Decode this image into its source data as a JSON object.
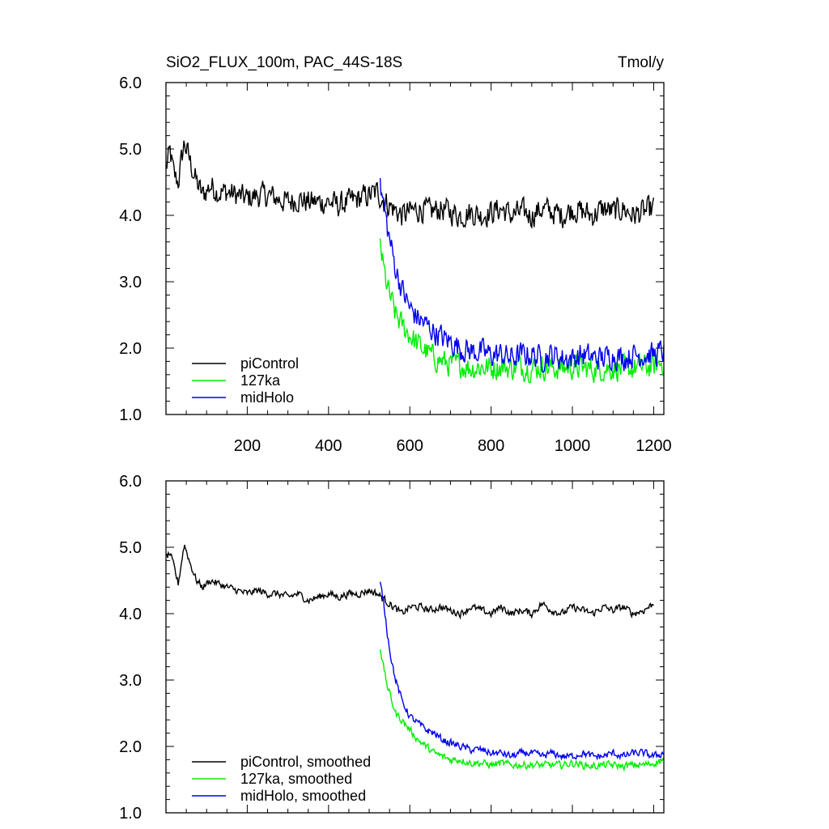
{
  "chart_data": [
    {
      "type": "line",
      "title": "SiO2_FLUX_100m, PAC_44S-18S",
      "units": "Tmol/y",
      "xlim": [
        0,
        1225
      ],
      "ylim": [
        1.0,
        6.0
      ],
      "x_ticks": [
        200,
        400,
        600,
        800,
        1000,
        1200
      ],
      "x_tick_labels": [
        "200",
        "400",
        "600",
        "800",
        "1000",
        "1200"
      ],
      "y_ticks": [
        1.0,
        2.0,
        3.0,
        4.0,
        5.0,
        6.0
      ],
      "y_tick_labels": [
        "1.0",
        "2.0",
        "3.0",
        "4.0",
        "5.0",
        "6.0"
      ],
      "legend_position": "bottom-left",
      "series": [
        {
          "name": "piControl",
          "color": "#000000",
          "points": [
            [
              0,
              4.7
            ],
            [
              10,
              4.95
            ],
            [
              20,
              4.6
            ],
            [
              30,
              4.5
            ],
            [
              45,
              5.1
            ],
            [
              60,
              4.8
            ],
            [
              75,
              4.5
            ],
            [
              90,
              4.3
            ],
            [
              110,
              4.45
            ],
            [
              130,
              4.35
            ],
            [
              150,
              4.35
            ],
            [
              175,
              4.3
            ],
            [
              200,
              4.25
            ],
            [
              225,
              4.3
            ],
            [
              250,
              4.3
            ],
            [
              275,
              4.25
            ],
            [
              300,
              4.2
            ],
            [
              325,
              4.25
            ],
            [
              350,
              4.2
            ],
            [
              375,
              4.2
            ],
            [
              400,
              4.2
            ],
            [
              425,
              4.15
            ],
            [
              450,
              4.2
            ],
            [
              475,
              4.25
            ],
            [
              500,
              4.3
            ],
            [
              520,
              4.35
            ],
            [
              540,
              4.2
            ],
            [
              560,
              4.1
            ],
            [
              580,
              4.0
            ],
            [
              600,
              4.05
            ],
            [
              625,
              4.1
            ],
            [
              650,
              4.05
            ],
            [
              675,
              4.1
            ],
            [
              700,
              4.05
            ],
            [
              725,
              4.0
            ],
            [
              750,
              4.05
            ],
            [
              775,
              4.0
            ],
            [
              800,
              4.05
            ],
            [
              825,
              4.1
            ],
            [
              850,
              4.0
            ],
            [
              875,
              4.05
            ],
            [
              900,
              4.0
            ],
            [
              925,
              4.1
            ],
            [
              950,
              4.05
            ],
            [
              975,
              4.0
            ],
            [
              1000,
              4.1
            ],
            [
              1025,
              4.05
            ],
            [
              1050,
              4.0
            ],
            [
              1075,
              4.1
            ],
            [
              1100,
              4.05
            ],
            [
              1125,
              4.1
            ],
            [
              1150,
              4.0
            ],
            [
              1175,
              4.05
            ],
            [
              1200,
              4.1
            ]
          ]
        },
        {
          "name": "127ka",
          "color": "#00ee00",
          "points": [
            [
              527,
              3.6
            ],
            [
              535,
              3.2
            ],
            [
              545,
              2.9
            ],
            [
              555,
              2.7
            ],
            [
              565,
              2.5
            ],
            [
              580,
              2.35
            ],
            [
              600,
              2.2
            ],
            [
              620,
              2.05
            ],
            [
              640,
              1.95
            ],
            [
              660,
              1.85
            ],
            [
              680,
              1.8
            ],
            [
              700,
              1.75
            ],
            [
              725,
              1.75
            ],
            [
              750,
              1.7
            ],
            [
              775,
              1.72
            ],
            [
              800,
              1.7
            ],
            [
              825,
              1.72
            ],
            [
              850,
              1.7
            ],
            [
              875,
              1.72
            ],
            [
              900,
              1.7
            ],
            [
              925,
              1.72
            ],
            [
              950,
              1.7
            ],
            [
              975,
              1.7
            ],
            [
              1000,
              1.72
            ],
            [
              1025,
              1.7
            ],
            [
              1050,
              1.68
            ],
            [
              1075,
              1.7
            ],
            [
              1100,
              1.7
            ],
            [
              1125,
              1.68
            ],
            [
              1150,
              1.7
            ],
            [
              1175,
              1.72
            ],
            [
              1200,
              1.72
            ],
            [
              1225,
              1.8
            ]
          ]
        },
        {
          "name": "midHolo",
          "color": "#0000ee",
          "points": [
            [
              527,
              4.4
            ],
            [
              535,
              4.2
            ],
            [
              545,
              3.8
            ],
            [
              555,
              3.5
            ],
            [
              565,
              3.2
            ],
            [
              580,
              2.9
            ],
            [
              600,
              2.6
            ],
            [
              620,
              2.45
            ],
            [
              640,
              2.35
            ],
            [
              660,
              2.25
            ],
            [
              680,
              2.15
            ],
            [
              700,
              2.1
            ],
            [
              725,
              2.0
            ],
            [
              750,
              1.95
            ],
            [
              775,
              1.95
            ],
            [
              800,
              1.9
            ],
            [
              825,
              1.9
            ],
            [
              850,
              1.85
            ],
            [
              875,
              1.9
            ],
            [
              900,
              1.9
            ],
            [
              925,
              1.85
            ],
            [
              950,
              1.9
            ],
            [
              975,
              1.85
            ],
            [
              1000,
              1.85
            ],
            [
              1025,
              1.9
            ],
            [
              1050,
              1.85
            ],
            [
              1075,
              1.85
            ],
            [
              1100,
              1.9
            ],
            [
              1125,
              1.85
            ],
            [
              1150,
              1.9
            ],
            [
              1175,
              1.9
            ],
            [
              1200,
              1.9
            ],
            [
              1225,
              1.95
            ]
          ]
        }
      ]
    },
    {
      "type": "line",
      "xlim": [
        0,
        1225
      ],
      "ylim": [
        1.0,
        6.0
      ],
      "y_ticks": [
        1.0,
        2.0,
        3.0,
        4.0,
        5.0,
        6.0
      ],
      "y_tick_labels": [
        "1.0",
        "2.0",
        "3.0",
        "4.0",
        "5.0",
        "6.0"
      ],
      "legend_position": "bottom-left",
      "series": [
        {
          "name": "piControl, smoothed",
          "color": "#000000",
          "points": [
            [
              0,
              4.85
            ],
            [
              10,
              4.9
            ],
            [
              20,
              4.7
            ],
            [
              30,
              4.45
            ],
            [
              45,
              5.05
            ],
            [
              60,
              4.75
            ],
            [
              75,
              4.5
            ],
            [
              90,
              4.4
            ],
            [
              110,
              4.5
            ],
            [
              130,
              4.45
            ],
            [
              150,
              4.4
            ],
            [
              175,
              4.35
            ],
            [
              200,
              4.3
            ],
            [
              225,
              4.35
            ],
            [
              250,
              4.3
            ],
            [
              275,
              4.3
            ],
            [
              300,
              4.25
            ],
            [
              325,
              4.3
            ],
            [
              350,
              4.2
            ],
            [
              375,
              4.25
            ],
            [
              400,
              4.3
            ],
            [
              425,
              4.25
            ],
            [
              450,
              4.3
            ],
            [
              475,
              4.3
            ],
            [
              500,
              4.35
            ],
            [
              520,
              4.3
            ],
            [
              540,
              4.2
            ],
            [
              560,
              4.1
            ],
            [
              580,
              4.0
            ],
            [
              600,
              4.1
            ],
            [
              625,
              4.1
            ],
            [
              650,
              4.05
            ],
            [
              675,
              4.1
            ],
            [
              700,
              4.05
            ],
            [
              725,
              4.0
            ],
            [
              750,
              4.1
            ],
            [
              775,
              4.05
            ],
            [
              800,
              4.0
            ],
            [
              825,
              4.1
            ],
            [
              850,
              4.0
            ],
            [
              875,
              4.05
            ],
            [
              900,
              4.0
            ],
            [
              925,
              4.15
            ],
            [
              950,
              4.05
            ],
            [
              975,
              4.0
            ],
            [
              1000,
              4.1
            ],
            [
              1025,
              4.05
            ],
            [
              1050,
              4.0
            ],
            [
              1075,
              4.1
            ],
            [
              1100,
              4.05
            ],
            [
              1125,
              4.1
            ],
            [
              1150,
              4.0
            ],
            [
              1175,
              4.05
            ],
            [
              1200,
              4.15
            ]
          ]
        },
        {
          "name": "127ka, smoothed",
          "color": "#00ee00",
          "points": [
            [
              527,
              3.5
            ],
            [
              535,
              3.2
            ],
            [
              545,
              2.9
            ],
            [
              555,
              2.7
            ],
            [
              565,
              2.5
            ],
            [
              580,
              2.4
            ],
            [
              600,
              2.25
            ],
            [
              620,
              2.1
            ],
            [
              640,
              2.0
            ],
            [
              660,
              1.9
            ],
            [
              680,
              1.85
            ],
            [
              700,
              1.8
            ],
            [
              725,
              1.8
            ],
            [
              750,
              1.75
            ],
            [
              775,
              1.75
            ],
            [
              800,
              1.72
            ],
            [
              825,
              1.75
            ],
            [
              850,
              1.72
            ],
            [
              875,
              1.72
            ],
            [
              900,
              1.72
            ],
            [
              925,
              1.72
            ],
            [
              950,
              1.72
            ],
            [
              975,
              1.72
            ],
            [
              1000,
              1.75
            ],
            [
              1025,
              1.72
            ],
            [
              1050,
              1.7
            ],
            [
              1075,
              1.72
            ],
            [
              1100,
              1.72
            ],
            [
              1125,
              1.7
            ],
            [
              1150,
              1.72
            ],
            [
              1175,
              1.72
            ],
            [
              1200,
              1.75
            ],
            [
              1225,
              1.8
            ]
          ]
        },
        {
          "name": "midHolo, smoothed",
          "color": "#0000ee",
          "points": [
            [
              527,
              4.45
            ],
            [
              535,
              4.2
            ],
            [
              545,
              3.7
            ],
            [
              555,
              3.3
            ],
            [
              565,
              3.0
            ],
            [
              580,
              2.7
            ],
            [
              600,
              2.45
            ],
            [
              620,
              2.35
            ],
            [
              640,
              2.25
            ],
            [
              660,
              2.2
            ],
            [
              680,
              2.1
            ],
            [
              700,
              2.05
            ],
            [
              725,
              2.0
            ],
            [
              750,
              1.95
            ],
            [
              775,
              1.95
            ],
            [
              800,
              1.9
            ],
            [
              825,
              1.9
            ],
            [
              850,
              1.85
            ],
            [
              875,
              1.9
            ],
            [
              900,
              1.9
            ],
            [
              925,
              1.85
            ],
            [
              950,
              1.9
            ],
            [
              975,
              1.85
            ],
            [
              1000,
              1.85
            ],
            [
              1025,
              1.9
            ],
            [
              1050,
              1.85
            ],
            [
              1075,
              1.85
            ],
            [
              1100,
              1.9
            ],
            [
              1125,
              1.85
            ],
            [
              1150,
              1.9
            ],
            [
              1175,
              1.9
            ],
            [
              1200,
              1.85
            ],
            [
              1225,
              1.9
            ]
          ]
        }
      ]
    }
  ]
}
